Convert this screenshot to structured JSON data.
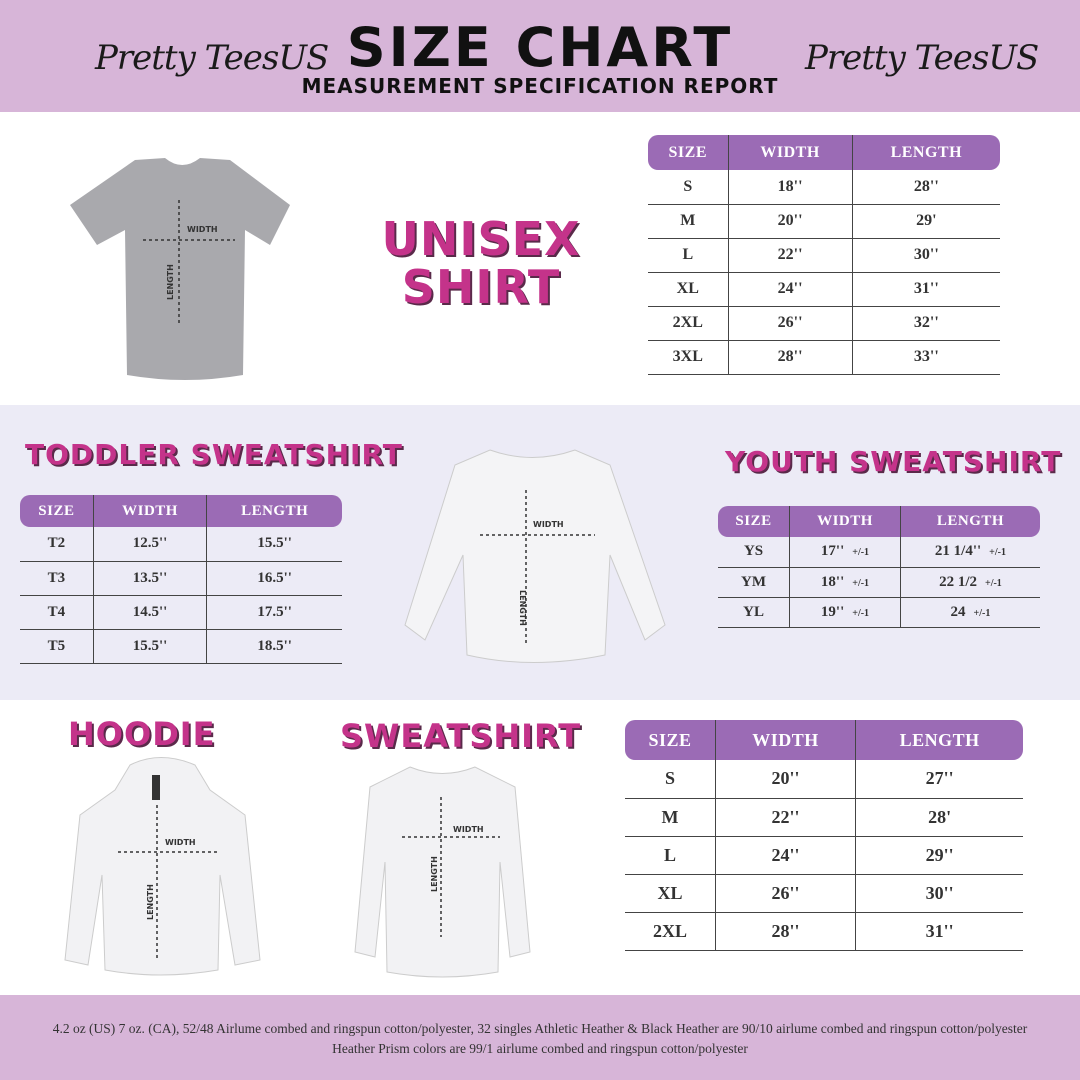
{
  "header": {
    "logo_left": "Pretty TeesUS",
    "logo_right": "Pretty TeesUS",
    "title": "SIZE CHART",
    "subtitle": "MEASUREMENT SPECIFICATION REPORT"
  },
  "colors": {
    "header_bg": "#d7b5d8",
    "table_header": "#9b6bb5",
    "product_title": "#c4338a",
    "middle_band": "#ecebf6"
  },
  "labels": {
    "width": "WIDTH",
    "length": "LENGTH"
  },
  "unisex": {
    "title_line1": "UNISEX",
    "title_line2": "SHIRT",
    "columns": [
      "SIZE",
      "WIDTH",
      "LENGTH"
    ],
    "rows": [
      [
        "S",
        "18''",
        "28''"
      ],
      [
        "M",
        "20''",
        "29'"
      ],
      [
        "L",
        "22''",
        "30''"
      ],
      [
        "XL",
        "24''",
        "31''"
      ],
      [
        "2XL",
        "26''",
        "32''"
      ],
      [
        "3XL",
        "28''",
        "33''"
      ]
    ]
  },
  "toddler": {
    "title": "TODDLER SWEATSHIRT",
    "columns": [
      "SIZE",
      "WIDTH",
      "LENGTH"
    ],
    "rows": [
      [
        "T2",
        "12.5''",
        "15.5''"
      ],
      [
        "T3",
        "13.5''",
        "16.5''"
      ],
      [
        "T4",
        "14.5''",
        "17.5''"
      ],
      [
        "T5",
        "15.5''",
        "18.5''"
      ]
    ]
  },
  "youth": {
    "title": "YOUTH SWEATSHIRT",
    "columns": [
      "SIZE",
      "WIDTH",
      "LENGTH"
    ],
    "tolerance": "+/-1",
    "rows": [
      [
        "YS",
        "17''",
        "21 1/4''"
      ],
      [
        "YM",
        "18''",
        "22 1/2"
      ],
      [
        "YL",
        "19''",
        "24"
      ]
    ]
  },
  "hoodie": {
    "title": "HOODIE"
  },
  "sweatshirt": {
    "title": "SWEATSHIRT",
    "columns": [
      "SIZE",
      "WIDTH",
      "LENGTH"
    ],
    "rows": [
      [
        "S",
        "20''",
        "27''"
      ],
      [
        "M",
        "22''",
        "28'"
      ],
      [
        "L",
        "24''",
        "29''"
      ],
      [
        "XL",
        "26''",
        "30''"
      ],
      [
        "2XL",
        "28''",
        "31''"
      ]
    ]
  },
  "footer": {
    "text": "4.2 oz (US) 7 oz. (CA), 52/48 Airlume combed and ringspun cotton/polyester, 32 singles Athletic Heather & Black Heather are 90/10 airlume combed and ringspun cotton/polyester Heather Prism colors are 99/1 airlume combed and ringspun cotton/polyester"
  }
}
